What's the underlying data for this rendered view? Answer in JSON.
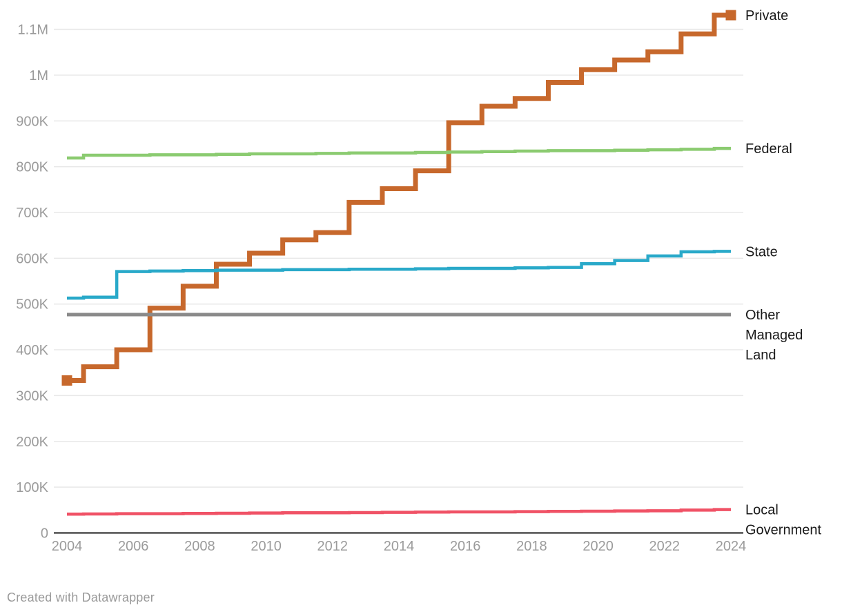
{
  "chart_data": {
    "type": "line",
    "line_style": "step-centered",
    "grid": "horizontal",
    "legend_position": "right-of-line-ends",
    "xlabel": "",
    "ylabel": "",
    "xlim": [
      2004,
      2024
    ],
    "ylim": [
      0,
      1160000
    ],
    "x": [
      2004,
      2005,
      2006,
      2007,
      2008,
      2009,
      2010,
      2011,
      2012,
      2013,
      2014,
      2015,
      2016,
      2017,
      2018,
      2019,
      2020,
      2021,
      2022,
      2023,
      2024
    ],
    "x_ticks": [
      "2004",
      "2006",
      "2008",
      "2010",
      "2012",
      "2014",
      "2016",
      "2018",
      "2020",
      "2022",
      "2024"
    ],
    "y_ticks": [
      {
        "value": 0,
        "label": "0"
      },
      {
        "value": 100000,
        "label": "100K"
      },
      {
        "value": 200000,
        "label": "200K"
      },
      {
        "value": 300000,
        "label": "300K"
      },
      {
        "value": 400000,
        "label": "400K"
      },
      {
        "value": 500000,
        "label": "500K"
      },
      {
        "value": 600000,
        "label": "600K"
      },
      {
        "value": 700000,
        "label": "700K"
      },
      {
        "value": 800000,
        "label": "800K"
      },
      {
        "value": 900000,
        "label": "900K"
      },
      {
        "value": 1000000,
        "label": "1M"
      },
      {
        "value": 1100000,
        "label": "1.1M"
      }
    ],
    "series": [
      {
        "name": "Private",
        "label_lines": [
          "Private"
        ],
        "color": "#C7682C",
        "stroke_width": 7,
        "end_markers": "square",
        "values": [
          333000,
          363000,
          400000,
          491000,
          539000,
          587000,
          611000,
          640000,
          656000,
          722000,
          752000,
          791000,
          896000,
          932000,
          949000,
          984000,
          1012000,
          1033000,
          1051000,
          1090000,
          1131000
        ]
      },
      {
        "name": "Federal",
        "label_lines": [
          "Federal"
        ],
        "color": "#8BCB70",
        "stroke_width": 4.5,
        "end_markers": "none",
        "values": [
          819000,
          825000,
          825000,
          826000,
          826000,
          827000,
          828000,
          828000,
          829000,
          830000,
          830000,
          831000,
          832000,
          833000,
          834000,
          835000,
          835000,
          836000,
          837000,
          838000,
          840000
        ]
      },
      {
        "name": "State",
        "label_lines": [
          "State"
        ],
        "color": "#29A9C9",
        "stroke_width": 4.5,
        "end_markers": "none",
        "values": [
          513000,
          515000,
          571000,
          572000,
          573000,
          574000,
          574000,
          575000,
          575000,
          576000,
          576000,
          577000,
          578000,
          578000,
          579000,
          580000,
          588000,
          595000,
          605000,
          614000,
          615000
        ]
      },
      {
        "name": "Other Managed Land",
        "label_lines": [
          "Other",
          "Managed",
          "Land"
        ],
        "color": "#8A8A8A",
        "stroke_width": 5,
        "end_markers": "none",
        "values": [
          477000,
          477000,
          477000,
          477000,
          477000,
          477000,
          477000,
          477000,
          477000,
          477000,
          477000,
          477000,
          477000,
          477000,
          477000,
          477000,
          477000,
          477000,
          477000,
          477000,
          477000
        ]
      },
      {
        "name": "Local Government",
        "label_lines": [
          "Local",
          "Government"
        ],
        "color": "#F05266",
        "stroke_width": 4.5,
        "end_markers": "none",
        "values": [
          41000,
          41500,
          42000,
          42000,
          42500,
          43000,
          43500,
          44000,
          44000,
          44500,
          45000,
          45500,
          46000,
          46000,
          46500,
          47000,
          47500,
          48000,
          48500,
          50000,
          51000
        ]
      }
    ],
    "colors": {
      "grid_line": "#E8E8E8",
      "axis_baseline": "#1A1A1A",
      "tick_label": "#9B9B9B",
      "series_label": "#1A1A1A"
    }
  },
  "footer": {
    "credit": "Created with Datawrapper"
  }
}
